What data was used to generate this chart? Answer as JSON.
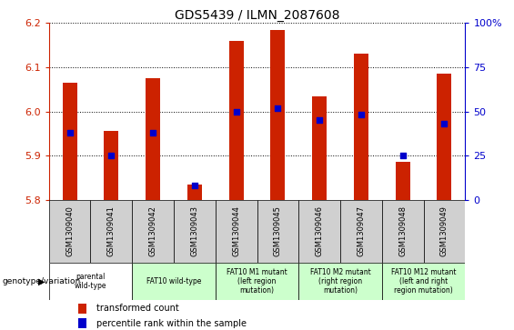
{
  "title": "GDS5439 / ILMN_2087608",
  "samples": [
    "GSM1309040",
    "GSM1309041",
    "GSM1309042",
    "GSM1309043",
    "GSM1309044",
    "GSM1309045",
    "GSM1309046",
    "GSM1309047",
    "GSM1309048",
    "GSM1309049"
  ],
  "transformed_count": [
    6.065,
    5.955,
    6.075,
    5.835,
    6.16,
    6.185,
    6.035,
    6.13,
    5.885,
    6.085
  ],
  "percentile_rank": [
    38,
    25,
    38,
    8,
    50,
    52,
    45,
    48,
    25,
    43
  ],
  "ylim": [
    5.8,
    6.2
  ],
  "yticks": [
    5.8,
    5.9,
    6.0,
    6.1,
    6.2
  ],
  "bar_color": "#cc2200",
  "dot_color": "#0000cc",
  "bar_bottom": 5.8,
  "right_yticks": [
    0,
    25,
    50,
    75,
    100
  ],
  "right_ytick_labels": [
    "0",
    "25",
    "50",
    "75",
    "100%"
  ],
  "group_spans": [
    {
      "start": 0,
      "end": 2,
      "label": "parental\nwild-type",
      "color": "#ffffff"
    },
    {
      "start": 2,
      "end": 4,
      "label": "FAT10 wild-type",
      "color": "#ccffcc"
    },
    {
      "start": 4,
      "end": 6,
      "label": "FAT10 M1 mutant\n(left region\nmutation)",
      "color": "#ccffcc"
    },
    {
      "start": 6,
      "end": 8,
      "label": "FAT10 M2 mutant\n(right region\nmutation)",
      "color": "#ccffcc"
    },
    {
      "start": 8,
      "end": 10,
      "label": "FAT10 M12 mutant\n(left and right\nregion mutation)",
      "color": "#ccffcc"
    }
  ],
  "genotype_label": "genotype/variation",
  "legend_items": [
    {
      "color": "#cc2200",
      "label": "transformed count"
    },
    {
      "color": "#0000cc",
      "label": "percentile rank within the sample"
    }
  ],
  "axis_color_left": "#cc2200",
  "axis_color_right": "#0000cc",
  "bar_width": 0.35,
  "cell_color": "#d0d0d0"
}
